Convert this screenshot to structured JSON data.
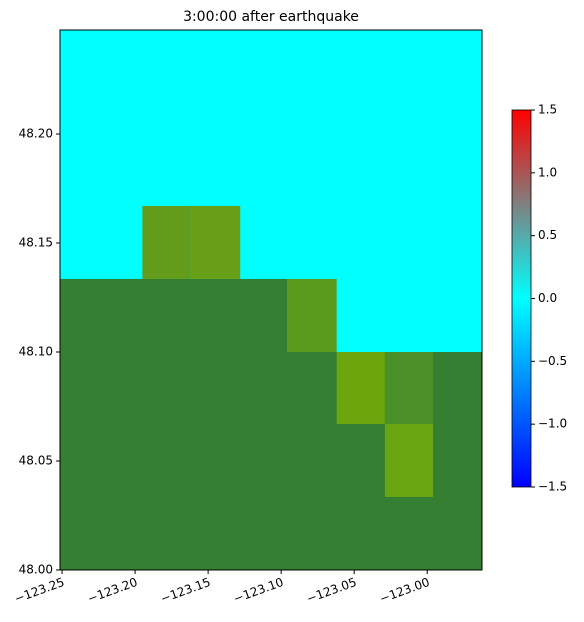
{
  "chart_data": {
    "type": "heatmap",
    "title": "3:00:00 after earthquake",
    "background": "#00ffff",
    "xlim": [
      -123.2514,
      -122.9625
    ],
    "ylim": [
      48.0,
      48.2477
    ],
    "xticks": [
      {
        "value": -123.25,
        "label": "−123.25"
      },
      {
        "value": -123.2,
        "label": "−123.20"
      },
      {
        "value": -123.15,
        "label": "−123.15"
      },
      {
        "value": -123.1,
        "label": "−123.10"
      },
      {
        "value": -123.05,
        "label": "−123.05"
      },
      {
        "value": -123.0,
        "label": "−123.00"
      }
    ],
    "yticks": [
      {
        "value": 48.0,
        "label": "48.00"
      },
      {
        "value": 48.05,
        "label": "48.05"
      },
      {
        "value": 48.1,
        "label": "48.10"
      },
      {
        "value": 48.15,
        "label": "48.15"
      },
      {
        "value": 48.2,
        "label": "48.20"
      }
    ],
    "cells": [
      {
        "x": [
          -123.2514,
          -123.096
        ],
        "y": [
          48.0,
          48.1335
        ],
        "color": "#357f33"
      },
      {
        "x": [
          -123.096,
          -122.9625
        ],
        "y": [
          48.0,
          48.1
        ],
        "color": "#357f33"
      },
      {
        "x": [
          -123.195,
          -123.162
        ],
        "y": [
          48.1335,
          48.167
        ],
        "color": "#629c1a"
      },
      {
        "x": [
          -123.162,
          -123.128
        ],
        "y": [
          48.1335,
          48.167
        ],
        "color": "#67a016"
      },
      {
        "x": [
          -123.096,
          -123.062
        ],
        "y": [
          48.1,
          48.1335
        ],
        "color": "#5a9a1c"
      },
      {
        "x": [
          -123.062,
          -123.029
        ],
        "y": [
          48.067,
          48.1
        ],
        "color": "#6aa60c"
      },
      {
        "x": [
          -123.029,
          -122.996
        ],
        "y": [
          48.067,
          48.1
        ],
        "color": "#4b8f27"
      },
      {
        "x": [
          -123.029,
          -122.996
        ],
        "y": [
          48.0335,
          48.067
        ],
        "color": "#6aa611"
      }
    ],
    "colorbar": {
      "clim": [
        -1.5,
        1.5
      ],
      "stops": [
        {
          "value": -1.5,
          "color": "#0000ff"
        },
        {
          "value": 0.0,
          "color": "#00ffff"
        },
        {
          "value": 0.75,
          "color": "#808080"
        },
        {
          "value": 1.5,
          "color": "#ff0000"
        }
      ],
      "ticks": [
        {
          "value": -1.5,
          "label": "−1.5"
        },
        {
          "value": -1.0,
          "label": "−1.0"
        },
        {
          "value": -0.5,
          "label": "−0.5"
        },
        {
          "value": 0.0,
          "label": "0.0"
        },
        0.5,
        {
          "value": 1.0,
          "label": "1.0"
        },
        1.5
      ]
    }
  }
}
